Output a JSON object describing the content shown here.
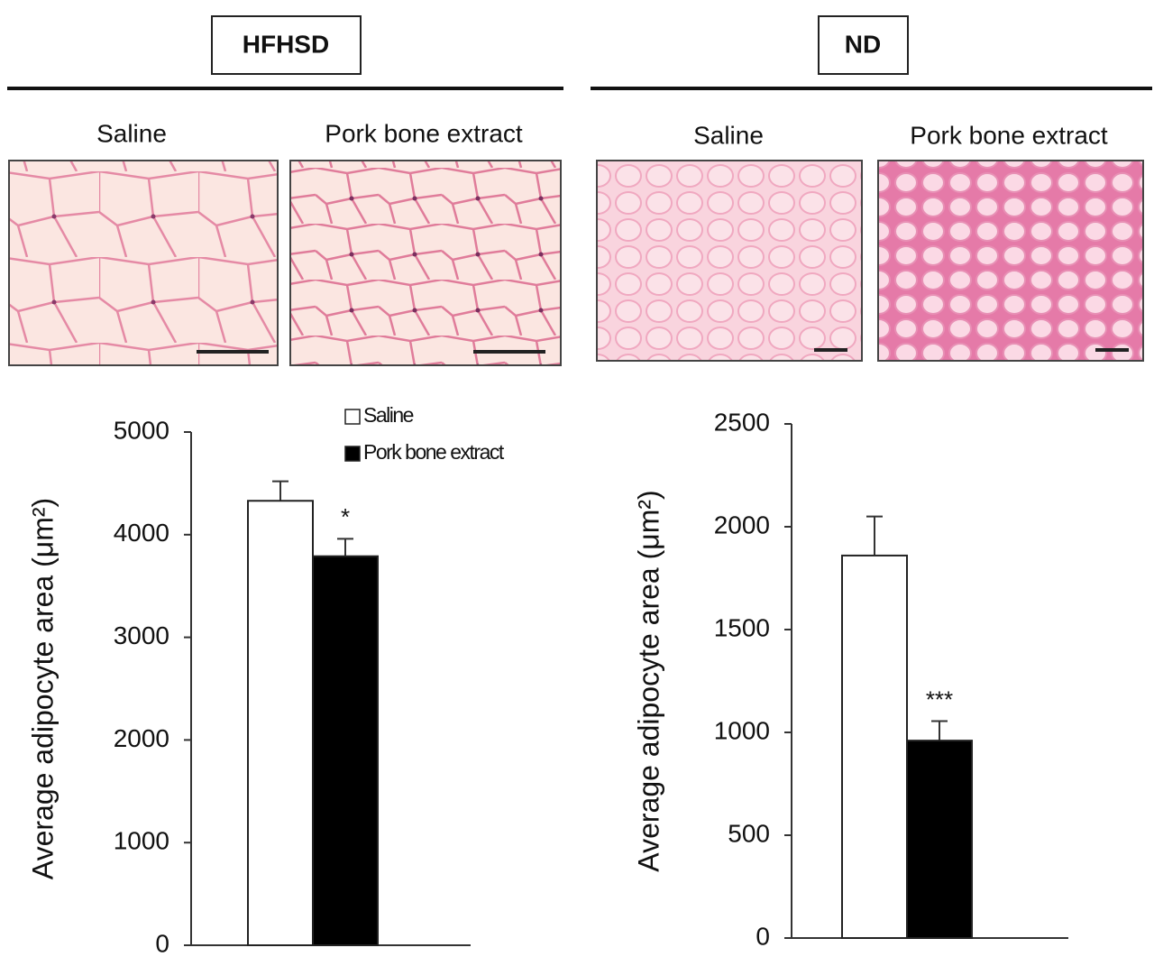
{
  "panels": [
    {
      "title": "HFHSD",
      "image_labels": [
        "Saline",
        "Pork bone extract"
      ]
    },
    {
      "title": "ND",
      "image_labels": [
        "Saline",
        "Pork bone extract"
      ]
    }
  ],
  "chart_data": [
    {
      "type": "bar",
      "ylabel": "Average adipocyte area (μm²)",
      "ylim": [
        0,
        5000
      ],
      "yticks": [
        0,
        1000,
        2000,
        3000,
        4000,
        5000
      ],
      "series": [
        {
          "name": "Saline",
          "color": "#ffffff",
          "values": [
            4330
          ],
          "errors": [
            190
          ]
        },
        {
          "name": "Pork bone extract",
          "color": "#000000",
          "values": [
            3790
          ],
          "errors": [
            170
          ]
        }
      ],
      "annotation": "*",
      "legend": "top-right"
    },
    {
      "type": "bar",
      "ylabel": "Average adipocyte area (μm²)",
      "ylim": [
        0,
        2500
      ],
      "yticks": [
        0,
        500,
        1000,
        1500,
        2000,
        2500
      ],
      "series": [
        {
          "name": "Saline",
          "color": "#ffffff",
          "values": [
            1860
          ],
          "errors": [
            190
          ]
        },
        {
          "name": "Pork bone extract",
          "color": "#000000",
          "values": [
            960
          ],
          "errors": [
            95
          ]
        }
      ],
      "annotation": "***"
    }
  ]
}
